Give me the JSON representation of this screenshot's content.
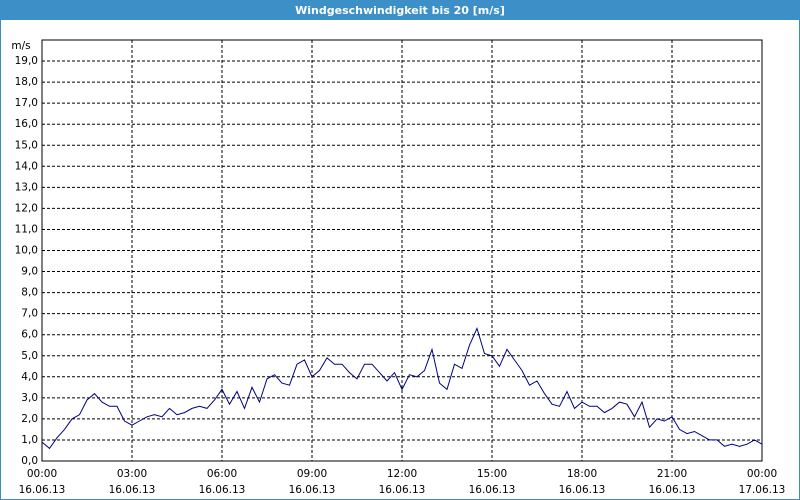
{
  "chart_data": {
    "type": "line",
    "title": "Windgeschwindigkeit bis 20 [m/s]",
    "y_label": "m/s",
    "grid": true,
    "xlim": [
      0,
      1440
    ],
    "ylim": [
      0,
      20
    ],
    "xticks": [
      {
        "value": 0,
        "label": "00:00",
        "date": "16.06.13"
      },
      {
        "value": 180,
        "label": "03:00",
        "date": "16.06.13"
      },
      {
        "value": 360,
        "label": "06:00",
        "date": "16.06.13"
      },
      {
        "value": 540,
        "label": "09:00",
        "date": "16.06.13"
      },
      {
        "value": 720,
        "label": "12:00",
        "date": "16.06.13"
      },
      {
        "value": 900,
        "label": "15:00",
        "date": "16.06.13"
      },
      {
        "value": 1080,
        "label": "18:00",
        "date": "16.06.13"
      },
      {
        "value": 1260,
        "label": "21:00",
        "date": "16.06.13"
      },
      {
        "value": 1440,
        "label": "00:00",
        "date": "17.06.13"
      }
    ],
    "yticks": [
      {
        "value": 0,
        "label": "0,0"
      },
      {
        "value": 1,
        "label": "1,0"
      },
      {
        "value": 2,
        "label": "2,0"
      },
      {
        "value": 3,
        "label": "3,0"
      },
      {
        "value": 4,
        "label": "4,0"
      },
      {
        "value": 5,
        "label": "5,0"
      },
      {
        "value": 6,
        "label": "6,0"
      },
      {
        "value": 7,
        "label": "7,0"
      },
      {
        "value": 8,
        "label": "8,0"
      },
      {
        "value": 9,
        "label": "9,0"
      },
      {
        "value": 10,
        "label": "10,0"
      },
      {
        "value": 11,
        "label": "11,0"
      },
      {
        "value": 12,
        "label": "12,0"
      },
      {
        "value": 13,
        "label": "13,0"
      },
      {
        "value": 14,
        "label": "14,0"
      },
      {
        "value": 15,
        "label": "15,0"
      },
      {
        "value": 16,
        "label": "16,0"
      },
      {
        "value": 17,
        "label": "17,0"
      },
      {
        "value": 18,
        "label": "18,0"
      },
      {
        "value": 19,
        "label": "19,0"
      }
    ],
    "x": [
      0,
      15,
      30,
      45,
      60,
      75,
      90,
      105,
      120,
      135,
      150,
      165,
      180,
      195,
      210,
      225,
      240,
      255,
      270,
      285,
      300,
      315,
      330,
      345,
      360,
      375,
      390,
      405,
      420,
      435,
      450,
      465,
      480,
      495,
      510,
      525,
      540,
      555,
      570,
      585,
      600,
      615,
      630,
      645,
      660,
      675,
      690,
      705,
      720,
      735,
      750,
      765,
      780,
      795,
      810,
      825,
      840,
      855,
      870,
      885,
      900,
      915,
      930,
      945,
      960,
      975,
      990,
      1005,
      1020,
      1035,
      1050,
      1065,
      1080,
      1095,
      1110,
      1125,
      1140,
      1155,
      1170,
      1185,
      1200,
      1215,
      1230,
      1245,
      1260,
      1275,
      1290,
      1305,
      1320,
      1335,
      1350,
      1365,
      1380,
      1395,
      1410,
      1425,
      1440
    ],
    "series": [
      {
        "color": "#000080",
        "values": [
          0.9,
          0.6,
          1.1,
          1.5,
          2.0,
          2.2,
          2.9,
          3.2,
          2.8,
          2.6,
          2.6,
          1.9,
          1.7,
          1.9,
          2.1,
          2.2,
          2.1,
          2.5,
          2.2,
          2.3,
          2.5,
          2.6,
          2.5,
          2.9,
          3.4,
          2.7,
          3.3,
          2.5,
          3.5,
          2.8,
          3.9,
          4.1,
          3.7,
          3.6,
          4.6,
          4.8,
          4.0,
          4.3,
          4.9,
          4.6,
          4.6,
          4.2,
          3.9,
          4.6,
          4.6,
          4.2,
          3.8,
          4.2,
          3.4,
          4.1,
          4.0,
          4.3,
          5.3,
          3.7,
          3.4,
          4.6,
          4.4,
          5.5,
          6.3,
          5.1,
          5.0,
          4.5,
          5.3,
          4.8,
          4.3,
          3.6,
          3.8,
          3.2,
          2.7,
          2.6,
          3.3,
          2.5,
          2.8,
          2.6,
          2.6,
          2.3,
          2.5,
          2.8,
          2.7,
          2.1,
          2.8,
          1.6,
          2.0,
          1.9,
          2.1,
          1.5,
          1.3,
          1.4,
          1.2,
          1.0,
          1.0,
          0.7,
          0.8,
          0.7,
          0.8,
          1.0,
          0.8
        ]
      }
    ]
  }
}
